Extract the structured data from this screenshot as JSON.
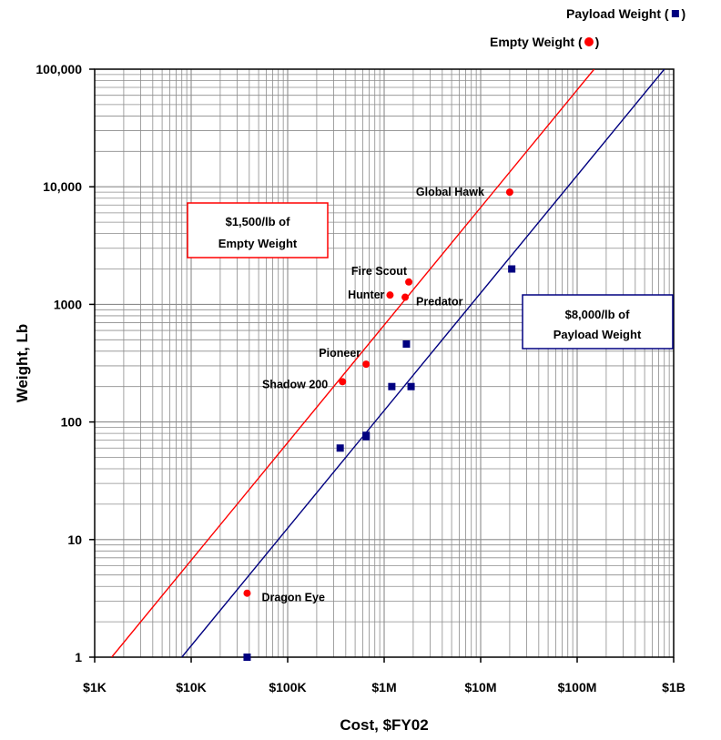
{
  "chart_data": {
    "type": "scatter",
    "xlabel": "Cost, $FY02",
    "ylabel": "Weight, Lb",
    "x_scale": "log",
    "y_scale": "log",
    "xlim": [
      1000,
      1000000000
    ],
    "ylim": [
      1,
      100000
    ],
    "grid": true,
    "x_ticks": [
      {
        "value": 1000,
        "label": "$1K"
      },
      {
        "value": 10000,
        "label": "$10K"
      },
      {
        "value": 100000,
        "label": "$100K"
      },
      {
        "value": 1000000,
        "label": "$1M"
      },
      {
        "value": 10000000,
        "label": "$10M"
      },
      {
        "value": 100000000,
        "label": "$100M"
      },
      {
        "value": 1000000000,
        "label": "$1B"
      }
    ],
    "y_ticks": [
      {
        "value": 1,
        "label": "1"
      },
      {
        "value": 10,
        "label": "10"
      },
      {
        "value": 100,
        "label": "100"
      },
      {
        "value": 1000,
        "label": "1000"
      },
      {
        "value": 10000,
        "label": "10,000"
      },
      {
        "value": 100000,
        "label": "100,000"
      }
    ],
    "legend": [
      {
        "text_before": "Payload Weight (",
        "text_after": ")",
        "marker": "square",
        "color": "#000080"
      },
      {
        "text_before": "Empty Weight (",
        "text_after": ")",
        "marker": "circle",
        "color": "#ff0000"
      }
    ],
    "series": [
      {
        "name": "Empty Weight",
        "marker": "circle",
        "color": "#ff0000",
        "points": [
          {
            "label": "Global Hawk",
            "x": 20000000,
            "y": 9000
          },
          {
            "label": "Fire Scout",
            "x": 1800000,
            "y": 1550
          },
          {
            "label": "Hunter",
            "x": 1150000,
            "y": 1200
          },
          {
            "label": "Predator",
            "x": 1650000,
            "y": 1150
          },
          {
            "label": "Pioneer",
            "x": 650000,
            "y": 310
          },
          {
            "label": "Shadow 200",
            "x": 370000,
            "y": 220
          },
          {
            "label": "Dragon Eye",
            "x": 38000,
            "y": 3.5
          }
        ]
      },
      {
        "name": "Payload Weight",
        "marker": "square",
        "color": "#000080",
        "points": [
          {
            "x": 21000000,
            "y": 2000
          },
          {
            "x": 1700000,
            "y": 460
          },
          {
            "x": 1200000,
            "y": 200
          },
          {
            "x": 1900000,
            "y": 200
          },
          {
            "x": 650000,
            "y": 75
          },
          {
            "x": 650000,
            "y": 77
          },
          {
            "x": 350000,
            "y": 60
          },
          {
            "x": 38000,
            "y": 1
          }
        ]
      }
    ],
    "trend_lines": [
      {
        "color": "#ff0000",
        "cost_per_lb": 1500,
        "x_from": 1500,
        "x_to": 150000000
      },
      {
        "color": "#000080",
        "cost_per_lb": 8000,
        "x_from": 8000,
        "x_to": 800000000
      }
    ],
    "annotations": [
      {
        "id": "empty",
        "lines": [
          "$1,500/lb of",
          "Empty Weight"
        ],
        "color": "#ff0000"
      },
      {
        "id": "payload",
        "lines": [
          "$8,000/lb of",
          "Payload Weight"
        ],
        "color": "#000080"
      }
    ]
  }
}
